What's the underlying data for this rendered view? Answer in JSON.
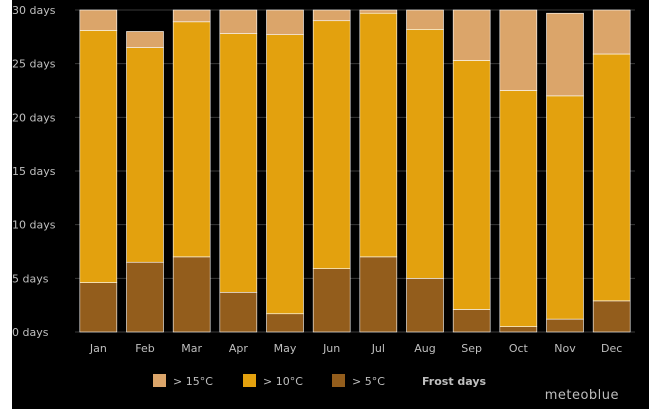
{
  "chart_data": {
    "type": "bar",
    "stacked": true,
    "categories": [
      "Jan",
      "Feb",
      "Mar",
      "Apr",
      "May",
      "Jun",
      "Jul",
      "Aug",
      "Sep",
      "Oct",
      "Nov",
      "Dec"
    ],
    "series": [
      {
        "name": "> 5°C",
        "color": "#935d1c",
        "values": [
          4.6,
          6.5,
          7.0,
          3.7,
          1.7,
          5.9,
          7.0,
          5.0,
          2.1,
          0.5,
          1.2,
          2.9
        ]
      },
      {
        "name": "> 10°C",
        "color": "#e3a10e",
        "values": [
          23.5,
          20.0,
          21.9,
          24.1,
          26.0,
          23.1,
          22.7,
          23.2,
          23.2,
          22.0,
          20.8,
          23.0
        ]
      },
      {
        "name": "> 15°C",
        "color": "#dba56a",
        "values": [
          1.9,
          1.5,
          1.1,
          2.2,
          2.3,
          1.0,
          0.3,
          1.8,
          4.7,
          7.5,
          7.7,
          4.1
        ]
      }
    ],
    "extra_legend": [
      {
        "name": "Frost days",
        "color": "#000000"
      }
    ],
    "ylim": [
      0,
      30
    ],
    "yticks": [
      0,
      5,
      10,
      15,
      20,
      25,
      30
    ],
    "ytick_suffix": " days",
    "grid": true,
    "legend_position": "bottom"
  },
  "watermark": "meteoblue",
  "colors": {
    "background": "#000000",
    "grid": "#3a3a3a",
    "text": "#bfbfbf",
    "bar_border": "#ffffff"
  }
}
